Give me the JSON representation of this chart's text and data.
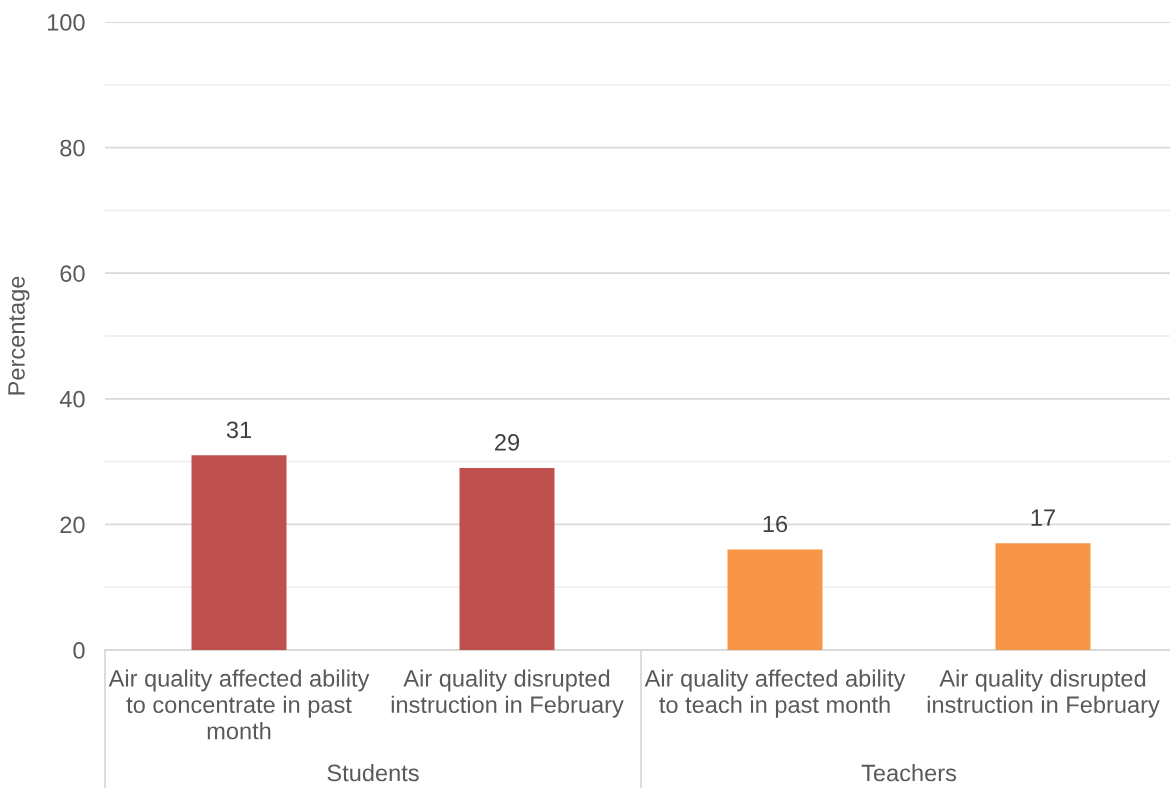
{
  "chart_data": {
    "type": "bar",
    "ylabel": "Percentage",
    "categories": [
      "Air quality affected ability\nto concentrate in past\nmonth",
      "Air quality disrupted\ninstruction in February",
      "Air quality affected ability\nto teach in past month",
      "Air quality disrupted\ninstruction in February"
    ],
    "values": [
      31,
      29,
      16,
      17
    ],
    "colors": [
      "#c0504d",
      "#c0504d",
      "#f79646",
      "#f79646"
    ],
    "annotations": [
      "Students",
      "Teachers"
    ],
    "ylim": [
      0,
      100
    ],
    "yticks": [
      0,
      {
        "value": 10,
        "label": null
      },
      20,
      {
        "value": 30,
        "label": null
      },
      40,
      {
        "value": 50,
        "label": null
      },
      60,
      {
        "value": 70,
        "label": null
      },
      80,
      {
        "value": 90,
        "label": null
      },
      100
    ],
    "grid": "y",
    "data_labels": true
  }
}
